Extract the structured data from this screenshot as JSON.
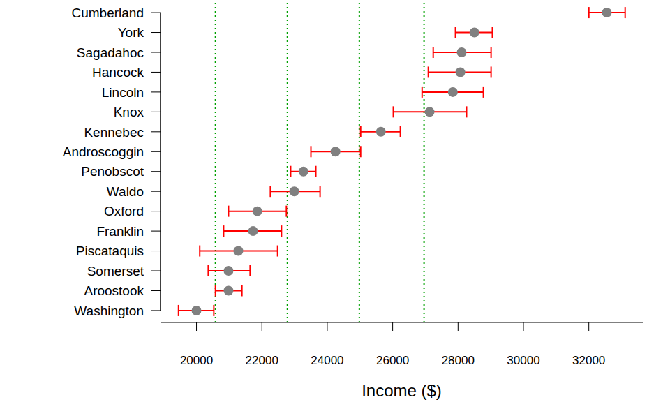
{
  "chart_data": {
    "type": "scatter",
    "orientation": "horizontal",
    "xlabel": "Income ($)",
    "categories": [
      "Cumberland",
      "York",
      "Sagadahoc",
      "Hancock",
      "Lincoln",
      "Knox",
      "Kennebec",
      "Androscoggin",
      "Penobscot",
      "Waldo",
      "Oxford",
      "Franklin",
      "Piscataquis",
      "Somerset",
      "Aroostook",
      "Washington"
    ],
    "values": [
      32550,
      28500,
      28110,
      28070,
      27840,
      27130,
      25640,
      24250,
      23270,
      22990,
      21860,
      21730,
      21280,
      20980,
      20980,
      20000
    ],
    "lower": [
      32000,
      27920,
      27240,
      27090,
      26900,
      26020,
      25020,
      23500,
      22880,
      22260,
      20980,
      20830,
      20100,
      20360,
      20580,
      19450
    ],
    "upper": [
      33110,
      29050,
      29010,
      29010,
      28775,
      28260,
      26235,
      25020,
      23650,
      23780,
      22750,
      22600,
      22480,
      21640,
      21390,
      20530
    ],
    "reference_lines": [
      20580,
      22780,
      24980,
      26960
    ],
    "color": "#808080",
    "marker": "circle",
    "xlim": [
      18900,
      33650
    ],
    "xticks": [
      20000,
      22000,
      24000,
      26000,
      28000,
      30000,
      32000
    ],
    "grid": false
  }
}
